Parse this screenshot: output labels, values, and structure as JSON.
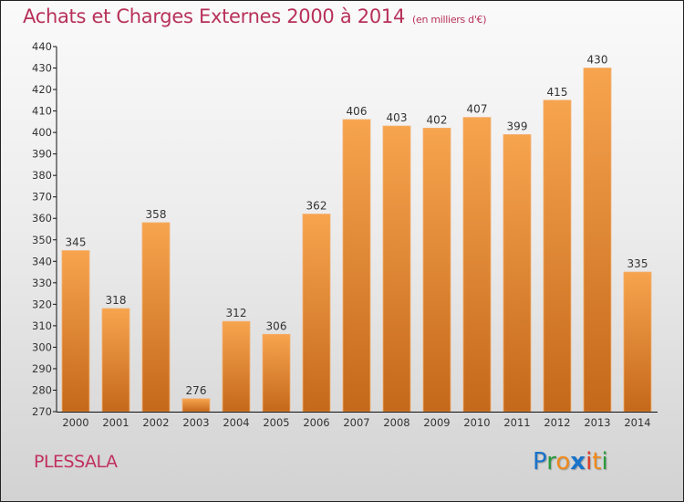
{
  "chart_data": {
    "type": "bar",
    "title": "Achats et Charges Externes 2000 à 2014",
    "subtitle": "(en milliers d'€)",
    "xlabel": "",
    "ylabel": "",
    "categories": [
      "2000",
      "2001",
      "2002",
      "2003",
      "2004",
      "2005",
      "2006",
      "2007",
      "2008",
      "2009",
      "2010",
      "2011",
      "2012",
      "2013",
      "2014"
    ],
    "values": [
      345,
      318,
      358,
      276,
      312,
      306,
      362,
      406,
      403,
      402,
      407,
      399,
      415,
      430,
      335
    ],
    "ylim": [
      270,
      440
    ],
    "yticks": [
      270,
      280,
      290,
      300,
      310,
      320,
      330,
      340,
      350,
      360,
      370,
      380,
      390,
      400,
      410,
      420,
      430,
      440
    ],
    "grid": false,
    "legend": "none",
    "bar_color_top": "#f7a44e",
    "bar_color_bottom": "#c4681a"
  },
  "footer": {
    "commune": "PLESSALA",
    "logo_letters": [
      {
        "ch": "P",
        "color": "#1a73c9"
      },
      {
        "ch": "r",
        "color": "#2a9a3c"
      },
      {
        "ch": "o",
        "color": "#f08a1c"
      },
      {
        "ch": "x",
        "color": "#1a73c9"
      },
      {
        "ch": "i",
        "color": "#e03a2a"
      },
      {
        "ch": "t",
        "color": "#f08a1c"
      },
      {
        "ch": "i",
        "color": "#2a9a3c"
      }
    ]
  }
}
